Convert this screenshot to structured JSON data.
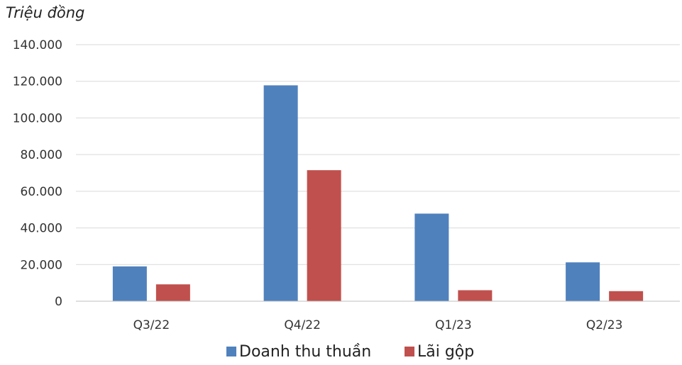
{
  "chart_data": {
    "type": "bar",
    "unit_label": "Triệu đồng",
    "categories": [
      "Q3/22",
      "Q4/22",
      "Q1/23",
      "Q2/23"
    ],
    "series": [
      {
        "name": "Doanh thu thuần",
        "color": "#4f81bd",
        "values": [
          19000,
          117800,
          47800,
          21200
        ]
      },
      {
        "name": "Lãi gộp",
        "color": "#c0504d",
        "values": [
          9200,
          71500,
          6000,
          5500
        ]
      }
    ],
    "ylim": [
      0,
      140000
    ],
    "yticks": [
      "0",
      "20.000",
      "40.000",
      "60.000",
      "80.000",
      "100.000",
      "120.000",
      "140.000"
    ],
    "grid": true,
    "legend_position": "bottom"
  }
}
